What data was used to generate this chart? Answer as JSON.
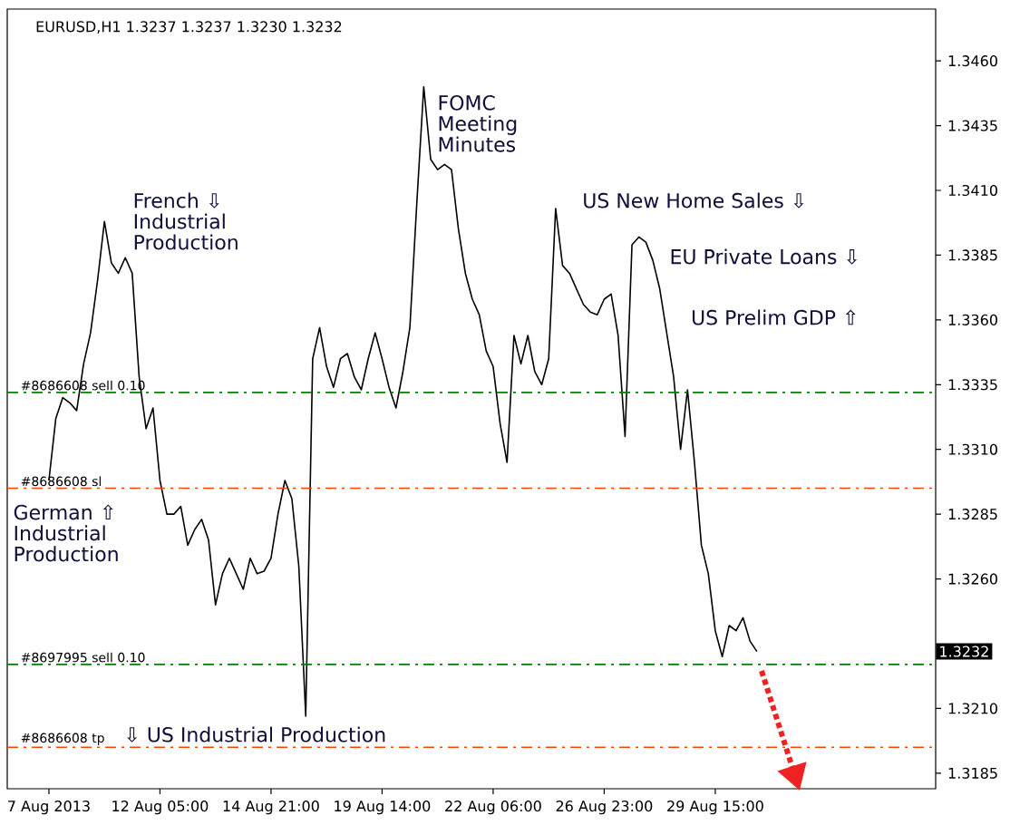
{
  "chart_data": {
    "type": "line",
    "title": "EURUSD,H1  1.3237 1.3237 1.3230 1.3232",
    "categories": [
      "7 Aug 2013",
      null,
      null,
      null,
      null,
      null,
      null,
      null,
      null,
      null,
      null,
      null,
      null,
      null,
      null,
      null,
      "12 Aug 05:00",
      null,
      null,
      null,
      null,
      null,
      null,
      null,
      null,
      null,
      null,
      null,
      null,
      null,
      null,
      null,
      "14 Aug 21:00",
      null,
      null,
      null,
      null,
      null,
      null,
      null,
      null,
      null,
      null,
      null,
      null,
      null,
      null,
      null,
      "19 Aug 14:00",
      null,
      null,
      null,
      null,
      null,
      null,
      null,
      null,
      null,
      null,
      null,
      null,
      null,
      null,
      null,
      "22 Aug 06:00",
      null,
      null,
      null,
      null,
      null,
      null,
      null,
      null,
      null,
      null,
      null,
      null,
      null,
      null,
      null,
      "26 Aug 23:00",
      null,
      null,
      null,
      null,
      null,
      null,
      null,
      null,
      null,
      null,
      null,
      null,
      null,
      null,
      null,
      "29 Aug 15:00",
      null,
      null,
      null,
      null,
      null,
      null,
      null,
      null,
      null,
      null,
      null,
      null,
      null,
      null,
      null,
      null,
      null,
      null,
      null,
      null,
      null,
      null,
      null,
      null,
      null,
      null,
      null,
      null,
      null,
      null,
      null
    ],
    "series": [
      {
        "color": "#000000",
        "values": [
          1.3298,
          1.3322,
          1.333,
          1.3328,
          1.3325,
          1.3343,
          1.3355,
          1.3375,
          1.3398,
          1.3382,
          1.3378,
          1.3384,
          1.3378,
          1.3338,
          1.3318,
          1.3326,
          1.3298,
          1.3285,
          1.3285,
          1.3288,
          1.3273,
          1.3279,
          1.3283,
          1.3275,
          1.325,
          1.3262,
          1.3268,
          1.3262,
          1.3256,
          1.3268,
          1.3262,
          1.3263,
          1.3268,
          1.3285,
          1.3298,
          1.3291,
          1.3265,
          1.3207,
          1.3345,
          1.3357,
          1.3342,
          1.3334,
          1.3345,
          1.3347,
          1.3338,
          1.3333,
          1.3345,
          1.3355,
          1.3345,
          1.3334,
          1.3326,
          1.334,
          1.3357,
          1.3405,
          1.345,
          1.3422,
          1.3418,
          1.342,
          1.3418,
          1.3395,
          1.3378,
          1.3368,
          1.3362,
          1.3348,
          1.3342,
          1.332,
          1.3305,
          1.3354,
          1.3343,
          1.3354,
          1.334,
          1.3335,
          1.3345,
          1.3403,
          1.3381,
          1.3378,
          1.3372,
          1.3366,
          1.3363,
          1.3362,
          1.3368,
          1.337,
          1.3354,
          1.3315,
          1.3389,
          1.3392,
          1.339,
          1.3383,
          1.3372,
          1.3355,
          1.3338,
          1.331,
          1.3333,
          1.3305,
          1.3273,
          1.3262,
          1.324,
          1.323,
          1.3242,
          1.324,
          1.3245,
          1.3236,
          1.3232,
          null,
          null,
          null,
          null,
          null,
          null,
          null,
          null,
          null,
          null,
          null,
          null,
          null,
          null,
          null,
          null,
          null,
          null,
          null,
          null,
          null,
          null,
          null,
          null,
          null
        ]
      }
    ],
    "ylim": [
      1.3179,
      1.348
    ],
    "yticks": [
      {
        "value": 1.346,
        "label": "1.3460"
      },
      1.3435,
      {
        "value": 1.341,
        "label": "1.3410"
      },
      1.3385,
      {
        "value": 1.336,
        "label": "1.3360"
      },
      1.3335,
      {
        "value": 1.331,
        "label": "1.3310"
      },
      1.3285,
      {
        "value": 1.326,
        "label": "1.3260"
      },
      {
        "value": 1.321,
        "label": "1.3210"
      },
      1.3185
    ],
    "ref_lines": [
      {
        "axis": "y",
        "value": 1.3332,
        "label": "#8686608 sell 0.10",
        "color": "#008000",
        "line_style": "dashdot"
      },
      {
        "axis": "y",
        "value": 1.3295,
        "label": "#8686608 sl",
        "color": "#ff4500",
        "line_style": "dashdot"
      },
      {
        "axis": "y",
        "value": 1.3227,
        "label": "#8697995 sell 0.10",
        "color": "#008000",
        "line_style": "dashdot"
      },
      {
        "axis": "y",
        "value": 1.3195,
        "label": "#8686608 tp",
        "color": "#ff4500",
        "line_style": "dashdot"
      }
    ],
    "annotations": [
      "French ⇩ Industrial Production",
      "FOMC Meeting Minutes",
      "US New Home Sales ⇩",
      "EU Private Loans ⇩",
      "US Prelim GDP ⇧",
      "German ⇧ Industrial Production",
      "⇩ US Industrial Production",
      "1.3232"
    ],
    "grid": false,
    "marker": "none"
  }
}
